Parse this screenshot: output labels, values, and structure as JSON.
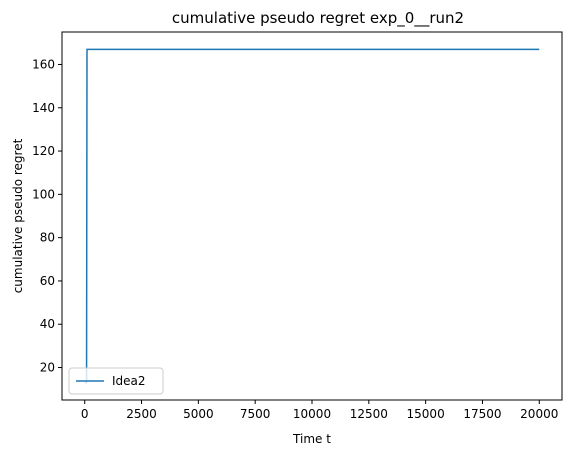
{
  "chart_data": {
    "type": "line",
    "title": "cumulative pseudo regret exp_0__run2",
    "xlabel": "Time t",
    "ylabel": "cumulative pseudo regret",
    "xlim": [
      -1000,
      21000
    ],
    "ylim": [
      5,
      175
    ],
    "xticks": [
      0,
      2500,
      5000,
      7500,
      10000,
      12500,
      15000,
      17500,
      20000
    ],
    "xtick_labels": [
      "0",
      "2500",
      "5000",
      "7500",
      "10000",
      "12500",
      "15000",
      "17500",
      "20000"
    ],
    "yticks": [
      20,
      40,
      60,
      80,
      100,
      120,
      140,
      160
    ],
    "ytick_labels": [
      "20",
      "40",
      "60",
      "80",
      "100",
      "120",
      "140",
      "160"
    ],
    "grid": false,
    "legend_position": "lower-left",
    "series": [
      {
        "name": "Idea2",
        "color": "#1f77b4",
        "x": [
          0,
          80,
          100,
          20000
        ],
        "y": [
          13,
          13,
          167,
          167
        ]
      }
    ]
  }
}
